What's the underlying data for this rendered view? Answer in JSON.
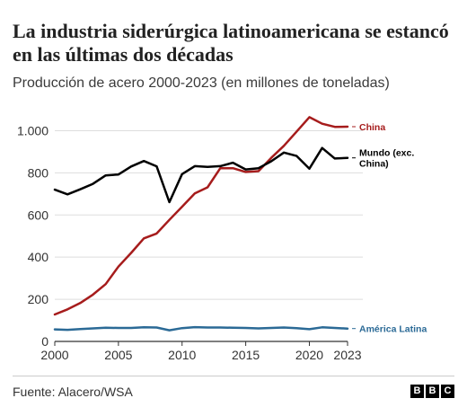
{
  "title": "La industria siderúrgica latinoamericana se estancó en las últimas dos décadas",
  "subtitle": "Producción de acero 2000-2023 (en millones de toneladas)",
  "source": "Fuente: Alacero/WSA",
  "logo": [
    "B",
    "B",
    "C"
  ],
  "chart_data": {
    "type": "line",
    "xlim": [
      2000,
      2023
    ],
    "ylim": [
      0,
      1100
    ],
    "grid": true,
    "x_ticks": [
      2000,
      2005,
      2010,
      2015,
      2020,
      2023
    ],
    "x_tick_labels": [
      "2000",
      "2005",
      "2010",
      "2015",
      "2020",
      "2023"
    ],
    "y_ticks": [
      0,
      200,
      400,
      600,
      800,
      1000
    ],
    "y_tick_labels": [
      "0",
      "200",
      "400",
      "600",
      "800",
      "1.000"
    ],
    "x": [
      2000,
      2001,
      2002,
      2003,
      2004,
      2005,
      2006,
      2007,
      2008,
      2009,
      2010,
      2011,
      2012,
      2013,
      2014,
      2015,
      2016,
      2017,
      2018,
      2019,
      2020,
      2021,
      2022,
      2023
    ],
    "series": [
      {
        "name": "China",
        "color": "#a61c1c",
        "values": [
          128,
          152,
          182,
          222,
          272,
          355,
          420,
          489,
          512,
          577,
          639,
          702,
          731,
          822,
          822,
          804,
          808,
          871,
          928,
          996,
          1064,
          1033,
          1018,
          1019
        ]
      },
      {
        "name": "Mundo (exc. China)",
        "color": "#000000",
        "values": [
          720,
          698,
          722,
          748,
          788,
          792,
          830,
          856,
          831,
          661,
          794,
          832,
          828,
          832,
          848,
          816,
          822,
          855,
          896,
          880,
          820,
          918,
          868,
          871
        ]
      },
      {
        "name": "América Latina",
        "color": "#2b6a96",
        "values": [
          57,
          55,
          59,
          62,
          65,
          64,
          64,
          67,
          66,
          53,
          63,
          68,
          66,
          66,
          65,
          64,
          62,
          64,
          66,
          63,
          58,
          67,
          64,
          61
        ]
      }
    ]
  }
}
